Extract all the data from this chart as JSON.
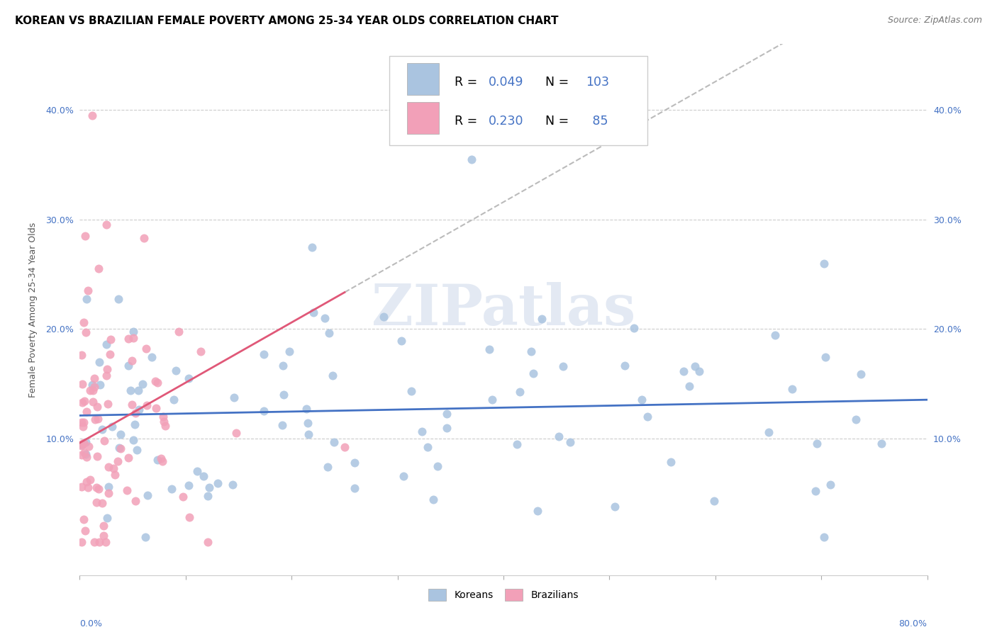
{
  "title": "KOREAN VS BRAZILIAN FEMALE POVERTY AMONG 25-34 YEAR OLDS CORRELATION CHART",
  "source": "Source: ZipAtlas.com",
  "ylabel": "Female Poverty Among 25-34 Year Olds",
  "korean_color": "#aac4e0",
  "brazilian_color": "#f2a0b8",
  "korean_line_color": "#4472c4",
  "brazilian_line_color": "#e05878",
  "dashed_line_color": "#bbbbbb",
  "koreans_label": "Koreans",
  "brazilians_label": "Brazilians",
  "watermark": "ZIPatlas",
  "R_korean": 0.049,
  "N_korean": 103,
  "R_brazilian": 0.23,
  "N_brazilian": 85,
  "xmin": 0.0,
  "xmax": 0.8,
  "ymin": -0.025,
  "ymax": 0.46,
  "ytick_vals": [
    0.1,
    0.2,
    0.3,
    0.4
  ],
  "ytick_labels": [
    "10.0%",
    "20.0%",
    "30.0%",
    "40.0%"
  ],
  "accent_color": "#4472c4"
}
